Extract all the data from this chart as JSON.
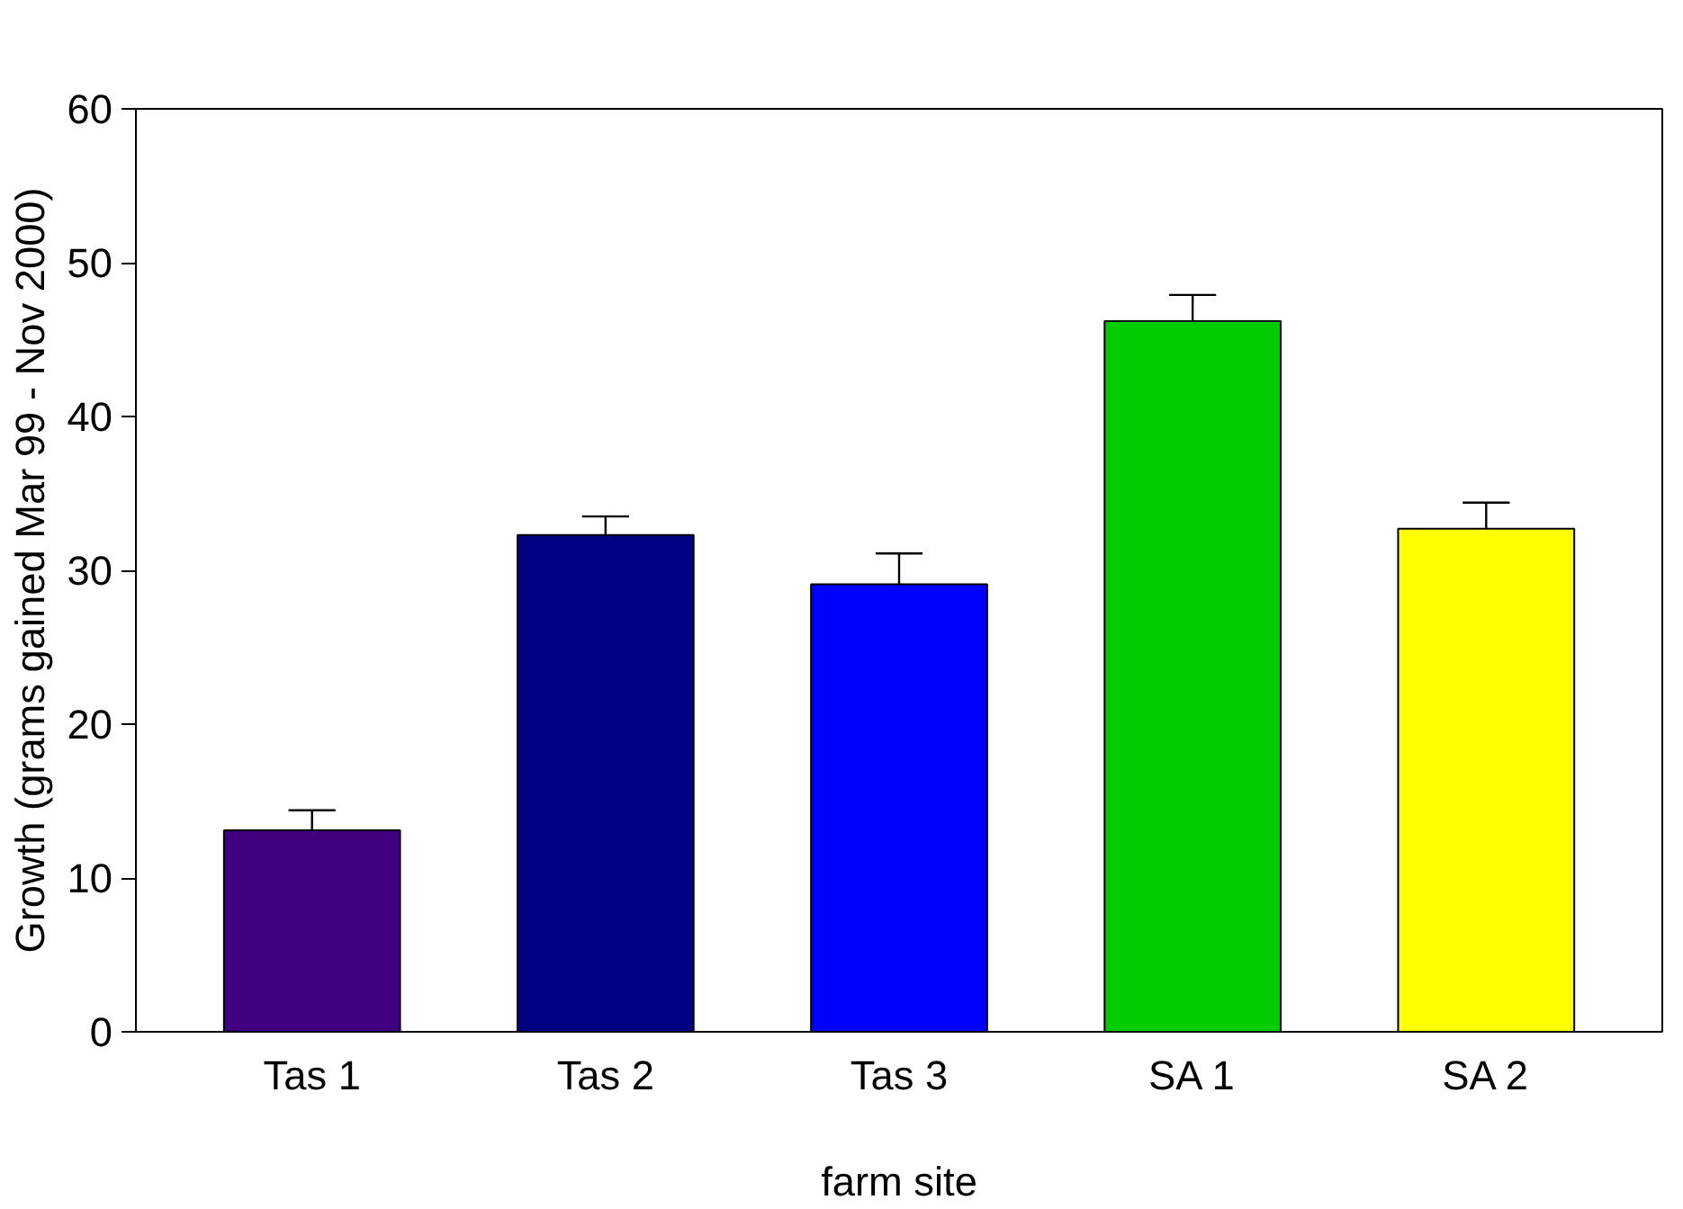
{
  "chart_data": {
    "type": "bar",
    "xlabel": "farm site",
    "ylabel": "Growth (grams gained Mar 99 - Nov 2000)",
    "categories": [
      "Tas 1",
      "Tas 2",
      "Tas 3",
      "SA 1",
      "SA 2"
    ],
    "values": [
      13.1,
      32.3,
      29.1,
      46.2,
      32.7
    ],
    "colors": [
      "#400080",
      "#000080",
      "#0000ff",
      "#00cc00",
      "#ffff00"
    ],
    "errors": [
      [
        13.1,
        14.4
      ],
      [
        32.3,
        33.5
      ],
      [
        29.1,
        31.1
      ],
      [
        46.2,
        47.9
      ],
      [
        32.7,
        34.4
      ]
    ],
    "ylim": [
      0,
      60
    ],
    "yticks": [
      0,
      10,
      20,
      30,
      40,
      50,
      60
    ],
    "grid": false
  }
}
